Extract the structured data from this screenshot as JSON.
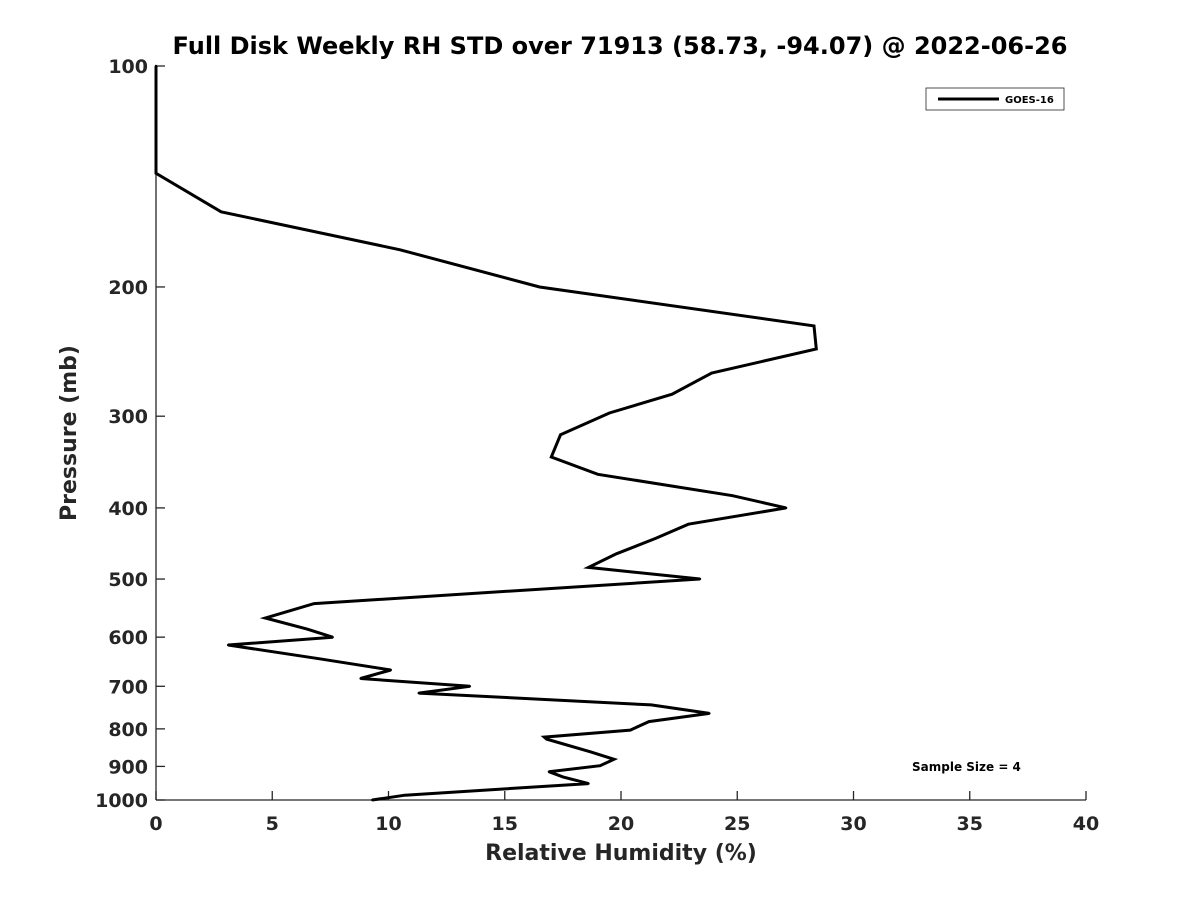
{
  "chart_data": {
    "type": "line",
    "title": "Full Disk Weekly RH STD over 71913 (58.73, -94.07) @ 2022-06-26",
    "xlabel": "Relative Humidity (%)",
    "ylabel": "Pressure (mb)",
    "xlim": [
      0,
      40
    ],
    "ylim": [
      100,
      1000
    ],
    "y_scale": "log",
    "y_reversed": true,
    "grid": false,
    "legend_position": "top-right",
    "x_ticks": [
      0,
      5,
      10,
      15,
      20,
      25,
      30,
      35,
      40
    ],
    "y_ticks": [
      100,
      200,
      300,
      400,
      500,
      600,
      700,
      800,
      900,
      1000
    ],
    "series": [
      {
        "name": "GOES-16",
        "color": "#000000",
        "x": [
          0.0,
          0.0,
          2.8,
          10.5,
          16.5,
          28.3,
          28.4,
          23.9,
          22.2,
          19.5,
          17.4,
          17.0,
          19.0,
          24.8,
          27.1,
          22.9,
          21.5,
          19.8,
          18.6,
          23.4,
          6.8,
          4.7,
          6.5,
          7.6,
          3.1,
          7.0,
          10.1,
          8.8,
          13.5,
          11.3,
          21.3,
          23.8,
          21.2,
          20.4,
          16.7,
          16.8,
          18.7,
          19.7,
          19.1,
          16.9,
          17.5,
          18.6,
          10.7,
          9.3
        ],
        "y": [
          100,
          140,
          158,
          178,
          200,
          226,
          243,
          262,
          280,
          297,
          318,
          341,
          360,
          385,
          400,
          421,
          440,
          462,
          482,
          500,
          540,
          565,
          585,
          600,
          615,
          642,
          665,
          683,
          700,
          715,
          742,
          762,
          782,
          803,
          821,
          826,
          860,
          880,
          898,
          915,
          930,
          950,
          985,
          1000
        ]
      }
    ],
    "annotations": [
      "Sample Size = 4"
    ]
  }
}
